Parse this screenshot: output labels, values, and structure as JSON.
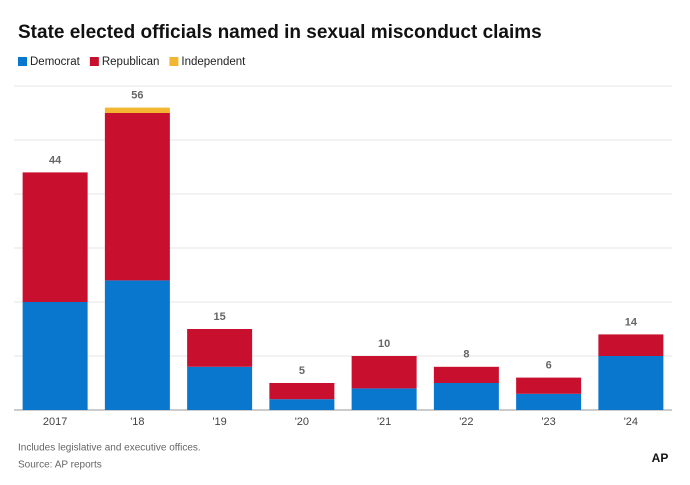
{
  "chart_data": {
    "type": "stacked_bar",
    "title": "State elected officials named in sexual misconduct claims",
    "categories": [
      "2017",
      "'18",
      "'19",
      "'20",
      "'21",
      "'22",
      "'23",
      "'24"
    ],
    "series": [
      {
        "name": "Democrat",
        "color": "#0a77cf",
        "values": [
          20,
          24,
          8,
          2,
          4,
          5,
          3,
          10
        ]
      },
      {
        "name": "Republican",
        "color": "#c8102e",
        "values": [
          24,
          31,
          7,
          3,
          6,
          3,
          3,
          4
        ]
      },
      {
        "name": "Independent",
        "color": "#f2b632",
        "values": [
          0,
          1,
          0,
          0,
          0,
          0,
          0,
          0
        ]
      }
    ],
    "totals": [
      44,
      56,
      15,
      5,
      10,
      8,
      6,
      14
    ],
    "ylim": [
      0,
      60
    ],
    "yticks": [
      0,
      10,
      20,
      30,
      40,
      50,
      60
    ],
    "grid": true,
    "notes": [
      "Includes legislative and executive offices.",
      "Source: AP reports"
    ],
    "logo": "AP"
  }
}
